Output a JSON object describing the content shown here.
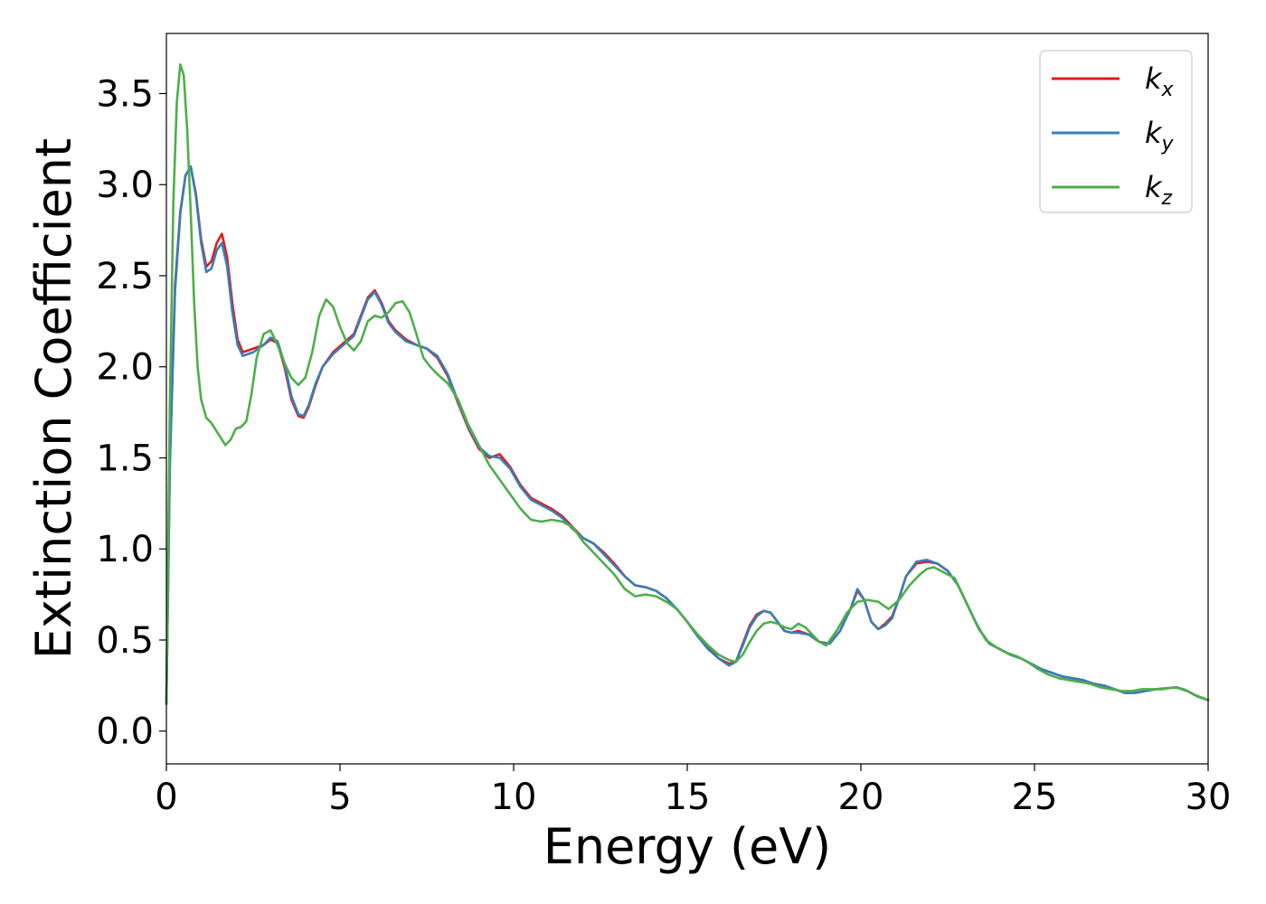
{
  "chart_data": {
    "type": "line",
    "title": "",
    "xlabel": "Energy (eV)",
    "ylabel": "Extinction Coefficient",
    "xlim": [
      0,
      30
    ],
    "ylim": [
      -0.18,
      3.83
    ],
    "xticks": [
      0,
      5,
      10,
      15,
      20,
      25,
      30
    ],
    "xtick_labels": [
      "0",
      "5",
      "10",
      "15",
      "20",
      "25",
      "30"
    ],
    "yticks": [
      0.0,
      0.5,
      1.0,
      1.5,
      2.0,
      2.5,
      3.0,
      3.5
    ],
    "ytick_labels": [
      "0.0",
      "0.5",
      "1.0",
      "1.5",
      "2.0",
      "2.5",
      "3.0",
      "3.5"
    ],
    "grid": false,
    "legend_position": "top-right",
    "series": [
      {
        "name": "k_x",
        "legend_base": "k",
        "legend_sub": "x",
        "color": "#e41a1c",
        "x": [
          0.0,
          0.1,
          0.25,
          0.4,
          0.55,
          0.7,
          0.85,
          1.0,
          1.15,
          1.3,
          1.45,
          1.6,
          1.75,
          1.9,
          2.05,
          2.2,
          2.5,
          2.8,
          3.0,
          3.2,
          3.4,
          3.6,
          3.8,
          3.95,
          4.1,
          4.3,
          4.5,
          4.8,
          5.1,
          5.4,
          5.6,
          5.8,
          6.0,
          6.2,
          6.4,
          6.6,
          6.9,
          7.2,
          7.5,
          7.8,
          8.1,
          8.4,
          8.7,
          9.0,
          9.3,
          9.6,
          9.9,
          10.2,
          10.5,
          10.8,
          11.1,
          11.4,
          11.7,
          12.0,
          12.3,
          12.6,
          12.9,
          13.2,
          13.5,
          13.8,
          14.1,
          14.4,
          14.7,
          15.0,
          15.3,
          15.6,
          15.9,
          16.2,
          16.4,
          16.6,
          16.8,
          17.0,
          17.2,
          17.4,
          17.6,
          17.8,
          18.0,
          18.2,
          18.5,
          18.8,
          19.1,
          19.4,
          19.7,
          19.9,
          20.1,
          20.3,
          20.5,
          20.7,
          20.9,
          21.1,
          21.3,
          21.6,
          21.9,
          22.2,
          22.5,
          22.8,
          23.1,
          23.4,
          23.7,
          24.0,
          24.3,
          24.6,
          24.9,
          25.2,
          25.5,
          25.8,
          26.1,
          26.4,
          26.7,
          27.0,
          27.3,
          27.6,
          27.9,
          28.2,
          28.5,
          28.8,
          29.1,
          29.4,
          29.7,
          30.0
        ],
        "y": [
          0.15,
          1.5,
          2.45,
          2.85,
          3.05,
          3.1,
          2.95,
          2.7,
          2.55,
          2.58,
          2.68,
          2.73,
          2.6,
          2.35,
          2.15,
          2.08,
          2.1,
          2.12,
          2.15,
          2.13,
          2.0,
          1.82,
          1.73,
          1.72,
          1.78,
          1.9,
          2.0,
          2.08,
          2.13,
          2.18,
          2.28,
          2.38,
          2.42,
          2.35,
          2.25,
          2.2,
          2.15,
          2.12,
          2.1,
          2.05,
          1.95,
          1.8,
          1.66,
          1.55,
          1.5,
          1.52,
          1.45,
          1.35,
          1.28,
          1.25,
          1.22,
          1.18,
          1.12,
          1.06,
          1.03,
          0.98,
          0.92,
          0.85,
          0.8,
          0.79,
          0.77,
          0.73,
          0.67,
          0.6,
          0.52,
          0.46,
          0.4,
          0.37,
          0.38,
          0.48,
          0.58,
          0.64,
          0.66,
          0.65,
          0.6,
          0.55,
          0.54,
          0.55,
          0.53,
          0.49,
          0.48,
          0.55,
          0.67,
          0.77,
          0.72,
          0.6,
          0.56,
          0.59,
          0.63,
          0.73,
          0.85,
          0.92,
          0.93,
          0.92,
          0.88,
          0.8,
          0.68,
          0.56,
          0.48,
          0.45,
          0.42,
          0.4,
          0.37,
          0.34,
          0.32,
          0.3,
          0.29,
          0.28,
          0.26,
          0.25,
          0.23,
          0.21,
          0.21,
          0.22,
          0.23,
          0.235,
          0.24,
          0.22,
          0.19,
          0.17
        ]
      },
      {
        "name": "k_y",
        "legend_base": "k",
        "legend_sub": "y",
        "color": "#377eb8",
        "x": [
          0.0,
          0.1,
          0.25,
          0.4,
          0.55,
          0.7,
          0.85,
          1.0,
          1.15,
          1.3,
          1.45,
          1.6,
          1.75,
          1.9,
          2.05,
          2.2,
          2.5,
          2.8,
          3.0,
          3.2,
          3.4,
          3.6,
          3.8,
          3.95,
          4.1,
          4.3,
          4.5,
          4.8,
          5.1,
          5.4,
          5.6,
          5.8,
          6.0,
          6.2,
          6.4,
          6.6,
          6.9,
          7.2,
          7.5,
          7.8,
          8.1,
          8.4,
          8.7,
          9.0,
          9.3,
          9.6,
          9.9,
          10.2,
          10.5,
          10.8,
          11.1,
          11.4,
          11.7,
          12.0,
          12.3,
          12.6,
          12.9,
          13.2,
          13.5,
          13.8,
          14.1,
          14.4,
          14.7,
          15.0,
          15.3,
          15.6,
          15.9,
          16.2,
          16.4,
          16.6,
          16.8,
          17.0,
          17.2,
          17.4,
          17.6,
          17.8,
          18.0,
          18.2,
          18.5,
          18.8,
          19.1,
          19.4,
          19.7,
          19.9,
          20.1,
          20.3,
          20.5,
          20.7,
          20.9,
          21.1,
          21.3,
          21.6,
          21.9,
          22.2,
          22.5,
          22.8,
          23.1,
          23.4,
          23.7,
          24.0,
          24.3,
          24.6,
          24.9,
          25.2,
          25.5,
          25.8,
          26.1,
          26.4,
          26.7,
          27.0,
          27.3,
          27.6,
          27.9,
          28.2,
          28.5,
          28.8,
          29.1,
          29.4,
          29.7,
          30.0
        ],
        "y": [
          0.15,
          1.45,
          2.42,
          2.84,
          3.05,
          3.1,
          2.94,
          2.68,
          2.52,
          2.54,
          2.64,
          2.68,
          2.55,
          2.3,
          2.12,
          2.06,
          2.08,
          2.12,
          2.16,
          2.14,
          2.02,
          1.84,
          1.74,
          1.73,
          1.79,
          1.91,
          2.0,
          2.07,
          2.12,
          2.17,
          2.27,
          2.37,
          2.41,
          2.34,
          2.24,
          2.19,
          2.14,
          2.12,
          2.1,
          2.06,
          1.96,
          1.81,
          1.67,
          1.56,
          1.51,
          1.5,
          1.44,
          1.34,
          1.27,
          1.24,
          1.21,
          1.17,
          1.11,
          1.06,
          1.03,
          0.97,
          0.91,
          0.85,
          0.8,
          0.79,
          0.77,
          0.73,
          0.67,
          0.6,
          0.52,
          0.45,
          0.4,
          0.36,
          0.38,
          0.47,
          0.57,
          0.63,
          0.66,
          0.65,
          0.6,
          0.55,
          0.54,
          0.54,
          0.53,
          0.49,
          0.48,
          0.55,
          0.67,
          0.78,
          0.72,
          0.6,
          0.56,
          0.58,
          0.62,
          0.73,
          0.85,
          0.93,
          0.94,
          0.92,
          0.88,
          0.8,
          0.68,
          0.56,
          0.48,
          0.45,
          0.42,
          0.4,
          0.37,
          0.34,
          0.32,
          0.3,
          0.29,
          0.28,
          0.26,
          0.25,
          0.23,
          0.21,
          0.21,
          0.22,
          0.23,
          0.235,
          0.24,
          0.22,
          0.19,
          0.17
        ]
      },
      {
        "name": "k_z",
        "legend_base": "k",
        "legend_sub": "z",
        "color": "#4daf4a",
        "x": [
          0.0,
          0.1,
          0.2,
          0.3,
          0.4,
          0.5,
          0.6,
          0.7,
          0.8,
          0.9,
          1.0,
          1.15,
          1.3,
          1.5,
          1.7,
          1.85,
          2.0,
          2.15,
          2.3,
          2.45,
          2.6,
          2.8,
          3.0,
          3.2,
          3.4,
          3.6,
          3.8,
          4.0,
          4.2,
          4.4,
          4.6,
          4.8,
          5.0,
          5.2,
          5.4,
          5.6,
          5.8,
          6.0,
          6.2,
          6.4,
          6.6,
          6.8,
          7.0,
          7.2,
          7.4,
          7.6,
          7.8,
          8.1,
          8.4,
          8.7,
          9.0,
          9.3,
          9.6,
          9.9,
          10.2,
          10.5,
          10.8,
          11.1,
          11.4,
          11.7,
          12.0,
          12.3,
          12.6,
          12.9,
          13.2,
          13.5,
          13.8,
          14.1,
          14.4,
          14.7,
          15.0,
          15.3,
          15.6,
          15.9,
          16.2,
          16.4,
          16.6,
          16.8,
          17.0,
          17.2,
          17.4,
          17.6,
          17.8,
          18.0,
          18.2,
          18.4,
          18.6,
          18.8,
          19.0,
          19.3,
          19.6,
          19.9,
          20.2,
          20.5,
          20.8,
          21.1,
          21.4,
          21.7,
          21.9,
          22.1,
          22.4,
          22.7,
          23.0,
          23.3,
          23.6,
          23.9,
          24.2,
          24.5,
          24.8,
          25.1,
          25.4,
          25.7,
          26.0,
          26.3,
          26.6,
          26.9,
          27.2,
          27.5,
          27.8,
          28.1,
          28.4,
          28.7,
          29.0,
          29.3,
          29.6,
          30.0
        ],
        "y": [
          0.15,
          1.8,
          2.9,
          3.45,
          3.66,
          3.6,
          3.3,
          2.85,
          2.35,
          2.0,
          1.82,
          1.72,
          1.69,
          1.63,
          1.57,
          1.6,
          1.66,
          1.67,
          1.7,
          1.85,
          2.05,
          2.18,
          2.2,
          2.12,
          2.02,
          1.94,
          1.9,
          1.94,
          2.08,
          2.28,
          2.37,
          2.33,
          2.22,
          2.13,
          2.09,
          2.14,
          2.25,
          2.28,
          2.27,
          2.3,
          2.35,
          2.36,
          2.3,
          2.18,
          2.05,
          2.0,
          1.96,
          1.91,
          1.82,
          1.68,
          1.57,
          1.46,
          1.38,
          1.3,
          1.22,
          1.16,
          1.15,
          1.16,
          1.15,
          1.12,
          1.04,
          0.98,
          0.92,
          0.86,
          0.78,
          0.74,
          0.75,
          0.74,
          0.71,
          0.67,
          0.6,
          0.53,
          0.47,
          0.42,
          0.39,
          0.38,
          0.42,
          0.49,
          0.55,
          0.59,
          0.6,
          0.59,
          0.57,
          0.56,
          0.59,
          0.57,
          0.53,
          0.49,
          0.47,
          0.55,
          0.65,
          0.71,
          0.72,
          0.71,
          0.67,
          0.72,
          0.8,
          0.86,
          0.89,
          0.9,
          0.87,
          0.84,
          0.72,
          0.6,
          0.5,
          0.46,
          0.43,
          0.41,
          0.38,
          0.34,
          0.31,
          0.29,
          0.28,
          0.27,
          0.26,
          0.24,
          0.23,
          0.22,
          0.22,
          0.23,
          0.23,
          0.23,
          0.24,
          0.23,
          0.2,
          0.17
        ]
      }
    ]
  }
}
